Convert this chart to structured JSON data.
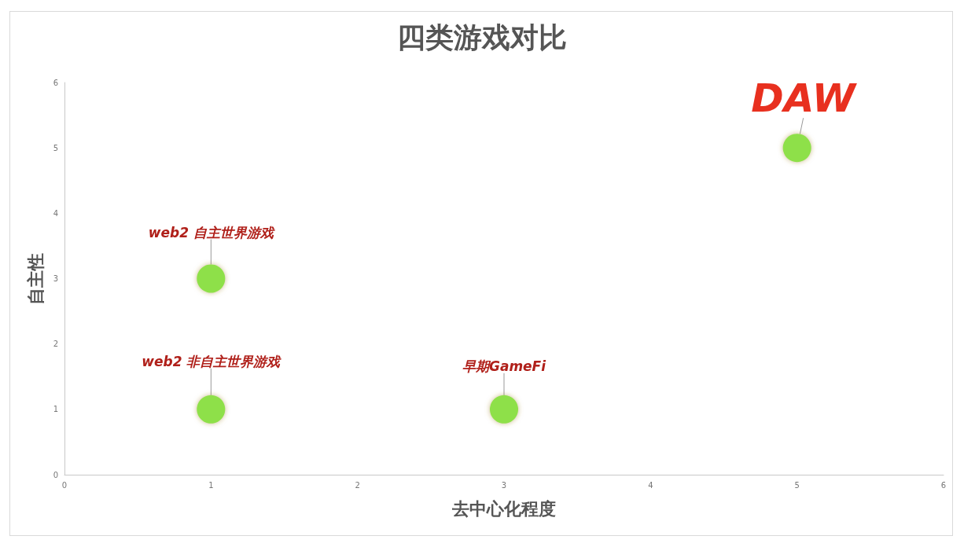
{
  "chart_data": {
    "type": "scatter",
    "title": "四类游戏对比",
    "xlabel": "去中心化程度",
    "ylabel": "自主性",
    "x": [
      1,
      1,
      3,
      5
    ],
    "series": [
      {
        "color": "#8ee04a",
        "values": [
          3,
          1,
          1,
          5
        ]
      }
    ],
    "annotations": [
      {
        "text": "web2 自主世界游戏",
        "x": 1,
        "y": 3
      },
      {
        "text": "web2 非自主世界游戏",
        "x": 1,
        "y": 1
      },
      {
        "text": "早期GameFi",
        "x": 3,
        "y": 1
      },
      {
        "text": "DAW",
        "x": 5,
        "y": 5
      }
    ],
    "xlim": [
      0,
      6
    ],
    "ylim": [
      0,
      6
    ],
    "xticks": [
      0,
      1,
      2,
      3,
      4,
      5,
      6
    ],
    "yticks": [
      0,
      1,
      2,
      3,
      4,
      5,
      6
    ],
    "grid": false,
    "marker": "circle"
  }
}
